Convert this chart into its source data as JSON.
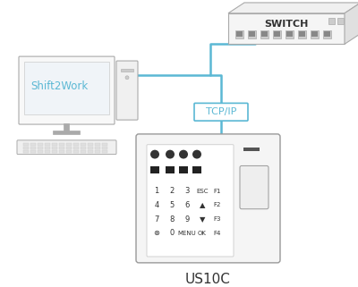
{
  "bg_color": "#ffffff",
  "line_color": "#5bb8d4",
  "line_width": 1.8,
  "outline_color": "#aaaaaa",
  "dark_color": "#333333",
  "switch_label": "SWITCH",
  "shift2work_label": "Shift2Work",
  "tcpip_label": "TCP/IP",
  "us10c_label": "US10C",
  "shift2work_color": "#5bb8d4",
  "switch_label_color": "#333333"
}
